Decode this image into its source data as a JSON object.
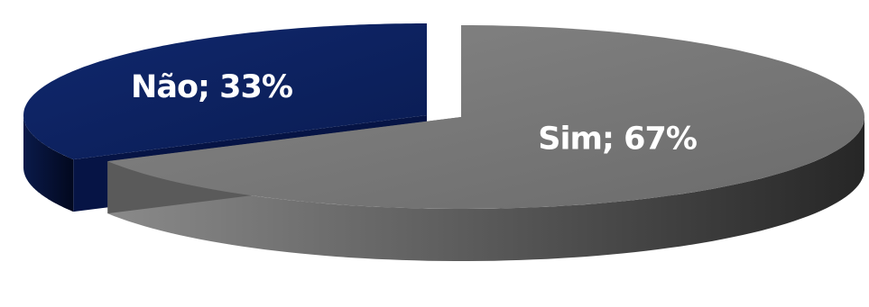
{
  "chart_data": {
    "type": "pie",
    "style": "3d-exploded",
    "slices": [
      {
        "category": "Não",
        "value": 33,
        "label": "Não; 33%",
        "color": "#0b1f5c"
      },
      {
        "category": "Sim",
        "value": 67,
        "label": "Sim; 67%",
        "color": "#7a7a7a"
      }
    ],
    "legend": "none",
    "title": ""
  }
}
